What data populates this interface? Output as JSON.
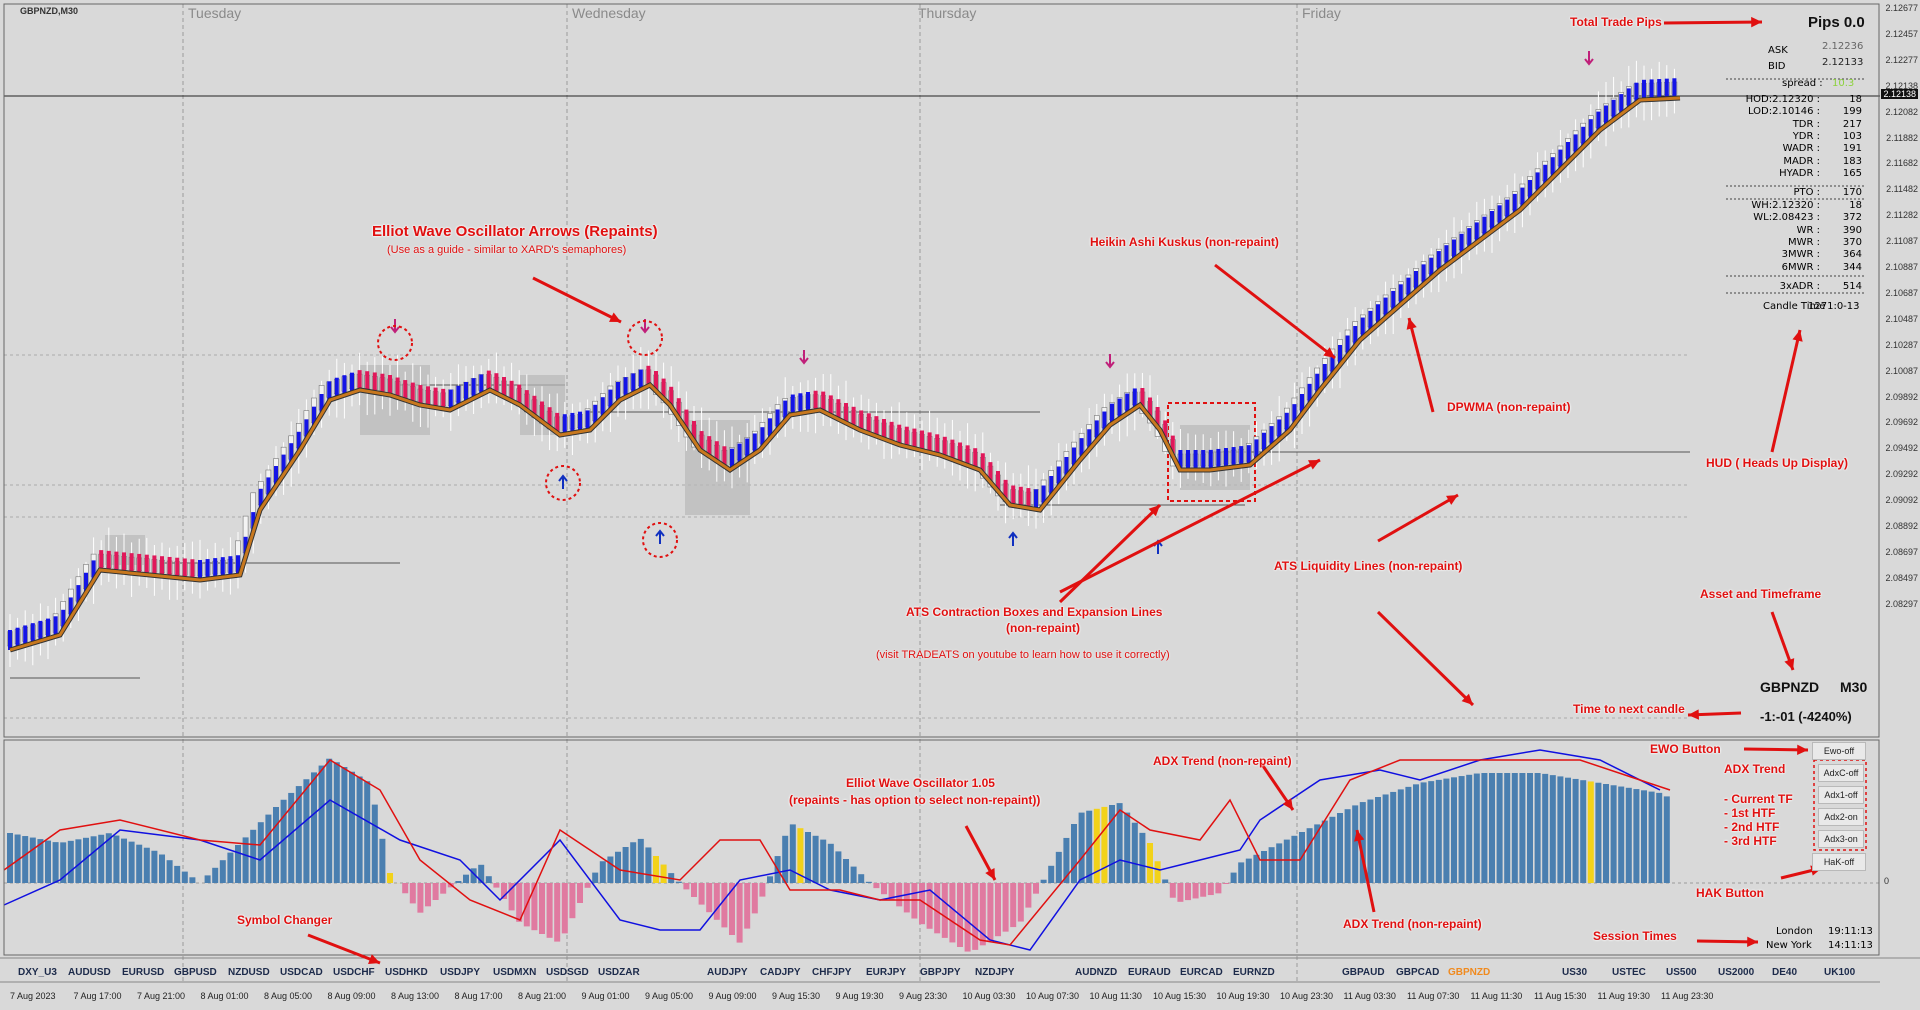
{
  "window": {
    "title": "GBPNZD,M30"
  },
  "days": [
    "Tuesday",
    "Wednesday",
    "Thursday",
    "Friday"
  ],
  "price_axis": [
    "2.12677",
    "2.12457",
    "2.12277",
    "2.12138",
    "2.12082",
    "2.11882",
    "2.11682",
    "2.11482",
    "2.11282",
    "2.11087",
    "2.10887",
    "2.10687",
    "2.10487",
    "2.10287",
    "2.10087",
    "2.09892",
    "2.09692",
    "2.09492",
    "2.09292",
    "2.09092",
    "2.08892",
    "2.08697",
    "2.08497",
    "2.08297"
  ],
  "current_price_label": "2.12138",
  "osc_axis": [
    "0"
  ],
  "time_axis": [
    "7 Aug 2023",
    "7 Aug 17:00",
    "7 Aug 21:00",
    "8 Aug 01:00",
    "8 Aug 05:00",
    "8 Aug 09:00",
    "8 Aug 13:00",
    "8 Aug 17:00",
    "8 Aug 21:00",
    "9 Aug 01:00",
    "9 Aug 05:00",
    "9 Aug 09:00",
    "9 Aug 15:30",
    "9 Aug 19:30",
    "9 Aug 23:30",
    "10 Aug 03:30",
    "10 Aug 07:30",
    "10 Aug 11:30",
    "10 Aug 15:30",
    "10 Aug 19:30",
    "10 Aug 23:30",
    "11 Aug 03:30",
    "11 Aug 07:30",
    "11 Aug 11:30",
    "11 Aug 15:30",
    "11 Aug 19:30",
    "11 Aug 23:30"
  ],
  "hud": {
    "pips_label": "Pips 0.0",
    "ask_label": "ASK",
    "ask_value": "2.12236",
    "bid_label": "BID",
    "bid_value": "2.12133",
    "spread_label": "spread :",
    "spread_value": "10.3",
    "rows1": [
      [
        "HOD:2.12320 :",
        "18"
      ],
      [
        "LOD:2.10146 :",
        "199"
      ],
      [
        "TDR :",
        "217"
      ],
      [
        "YDR :",
        "103"
      ],
      [
        "WADR :",
        "191"
      ],
      [
        "MADR :",
        "183"
      ],
      [
        "HYADR :",
        "165"
      ]
    ],
    "pto": [
      "PTO :",
      "170"
    ],
    "rows2": [
      [
        "WH:2.12320 :",
        "18"
      ],
      [
        "WL:2.08423 :",
        "372"
      ],
      [
        "WR :",
        "390"
      ],
      [
        "MWR :",
        "370"
      ],
      [
        "3MWR :",
        "364"
      ],
      [
        "6MWR :",
        "344"
      ]
    ],
    "xadr": [
      "3xADR :",
      "514"
    ],
    "candle_time": "Candle Time",
    "candle_time_value": "1271:0-13",
    "asset": "GBPNZD",
    "timeframe": "M30",
    "next_candle": "-1:-01 (-4240%)",
    "sessions": [
      [
        "London",
        "19:11:13"
      ],
      [
        "New York",
        "14:11:13"
      ]
    ]
  },
  "buttons": {
    "ewo": "Ewo-off",
    "adx": [
      "AdxC-off",
      "Adx1-off",
      "Adx2-on",
      "Adx3-on"
    ],
    "hak": "HaK-off"
  },
  "symbols": [
    {
      "label": "DXY_U3",
      "active": false
    },
    {
      "label": "AUDUSD",
      "active": false
    },
    {
      "label": "EURUSD",
      "active": false
    },
    {
      "label": "GBPUSD",
      "active": false
    },
    {
      "label": "NZDUSD",
      "active": false
    },
    {
      "label": "USDCAD",
      "active": false
    },
    {
      "label": "USDCHF",
      "active": false
    },
    {
      "label": "USDHKD",
      "active": false
    },
    {
      "label": "USDJPY",
      "active": false
    },
    {
      "label": "USDMXN",
      "active": false
    },
    {
      "label": "USDSGD",
      "active": false
    },
    {
      "label": "USDZAR",
      "active": false
    },
    {
      "label": "AUDJPY",
      "active": false
    },
    {
      "label": "CADJPY",
      "active": false
    },
    {
      "label": "CHFJPY",
      "active": false
    },
    {
      "label": "EURJPY",
      "active": false
    },
    {
      "label": "GBPJPY",
      "active": false
    },
    {
      "label": "NZDJPY",
      "active": false
    },
    {
      "label": "AUDNZD",
      "active": false
    },
    {
      "label": "EURAUD",
      "active": false
    },
    {
      "label": "EURCAD",
      "active": false
    },
    {
      "label": "EURNZD",
      "active": false
    },
    {
      "label": "GBPAUD",
      "active": false
    },
    {
      "label": "GBPCAD",
      "active": false
    },
    {
      "label": "GBPNZD",
      "active": true
    },
    {
      "label": "US30",
      "active": false
    },
    {
      "label": "USTEC",
      "active": false
    },
    {
      "label": "US500",
      "active": false
    },
    {
      "label": "US2000",
      "active": false
    },
    {
      "label": "DE40",
      "active": false
    },
    {
      "label": "UK100",
      "active": false
    }
  ],
  "annotations": {
    "ewo_arrows_title": "Elliot Wave Oscillator Arrows (Repaints)",
    "ewo_arrows_note": "(Use as a guide - similar to XARD's semaphores)",
    "heikin": "Heikin Ashi Kuskus (non-repaint)",
    "dpwma": "DPWMA (non-repaint)",
    "hud": "HUD ( Heads Up Display)",
    "liquidity": "ATS Liquidity Lines (non-repaint)",
    "ats_boxes": "ATS Contraction Boxes and Expansion Lines",
    "ats_boxes2": "(non-repaint)",
    "ats_note": "(visit TRADEATS on youtube to learn how to use it correctly)",
    "asset_tf": "Asset and Timeframe",
    "time_next": "Time to next candle",
    "total_pips": "Total Trade Pips",
    "ewo_button": "EWO Button",
    "adx_trend_side": "ADX Trend",
    "adx_list": [
      "- Current TF",
      "- 1st HTF",
      "- 2nd HTF",
      "- 3rd HTF"
    ],
    "hak_button": "HAK Button",
    "session_times": "Session Times",
    "ewo_osc_title": "Elliot Wave Oscillator 1.05",
    "ewo_osc_note": "(repaints - has option to select non-repaint))",
    "adx_trend_top": "ADX Trend (non-repaint)",
    "adx_trend_bottom": "ADX Trend (non-repaint)",
    "symbol_changer": "Symbol Changer"
  },
  "colors": {
    "bull_candle": "#1414e6",
    "bear_candle": "#e0185a",
    "dpwma": "#c8781e",
    "histogram_up": "#4a7fb0",
    "histogram_down": "#e07aa0",
    "histogram_flag": "#f2d21a",
    "annotation": "#e01010",
    "adx_blue": "#1010e0",
    "adx_red": "#e01010"
  }
}
